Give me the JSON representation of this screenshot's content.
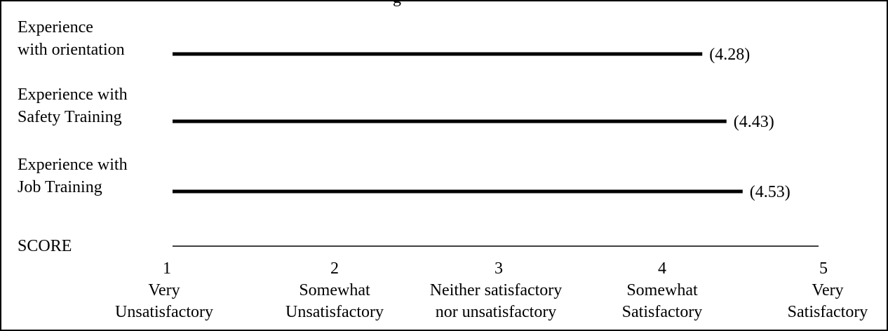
{
  "figure": {
    "cut_title": "g"
  },
  "chart_data": {
    "type": "bar",
    "orientation": "horizontal",
    "categories": [
      [
        "Experience",
        "with orientation"
      ],
      [
        "Experience with",
        "Safety Training"
      ],
      [
        "Experience with",
        "Job Training"
      ]
    ],
    "values": [
      4.28,
      4.43,
      4.53
    ],
    "value_labels": [
      "(4.28)",
      "(4.43)",
      "(4.53)"
    ],
    "axis_title": "SCORE",
    "xlim": [
      1,
      5
    ],
    "ticks": [
      {
        "value": "1",
        "label": [
          "Very",
          "Unsatisfactory"
        ]
      },
      {
        "value": "2",
        "label": [
          "Somewhat",
          "Unsatisfactory"
        ]
      },
      {
        "value": "3",
        "label": [
          "Neither satisfactory",
          "nor unsatisfactory"
        ]
      },
      {
        "value": "4",
        "label": [
          "Somewhat",
          "Satisfactory"
        ]
      },
      {
        "value": "5",
        "label": [
          "Very",
          "Satisfactory"
        ]
      }
    ],
    "grid": false,
    "legend": "none",
    "colors": {
      "bar": "#000000",
      "axis": "#000000",
      "text": "#000000"
    }
  }
}
